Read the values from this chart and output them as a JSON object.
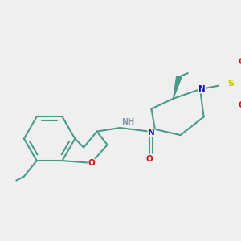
{
  "background_color": "#efefef",
  "bond_color": "#4a9a8a",
  "bond_width": 1.5,
  "atom_colors": {
    "N": "#1414cc",
    "O": "#cc1414",
    "S": "#cccc00",
    "H": "#8899aa",
    "C": "#4a9a8a"
  }
}
